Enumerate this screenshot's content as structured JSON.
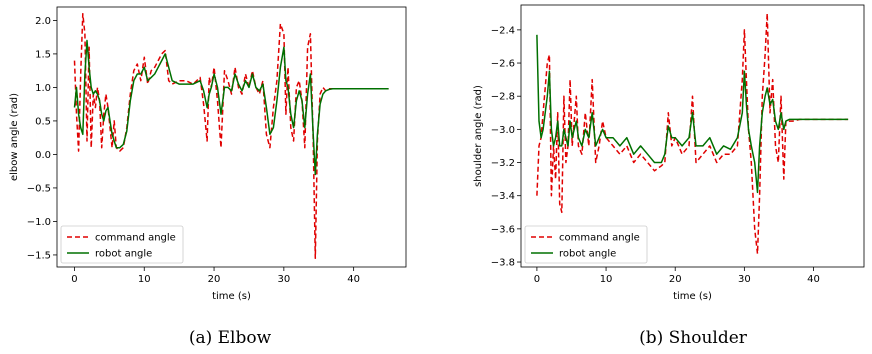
{
  "colors": {
    "command": "#e00000",
    "robot": "#007000"
  },
  "chart_data": [
    {
      "type": "line",
      "caption": "(a) Elbow",
      "xlabel": "time (s)",
      "ylabel": "elbow angle (rad)",
      "xlim": [
        -2.5,
        47.5
      ],
      "ylim": [
        -1.68,
        2.2
      ],
      "xticks": [
        0,
        10,
        20,
        30,
        40
      ],
      "yticks": [
        -1.5,
        -1.0,
        -0.5,
        0.0,
        0.5,
        1.0,
        1.5,
        2.0
      ],
      "ytick_labels": [
        "−1.5",
        "−1.0",
        "−0.5",
        "0.0",
        "0.5",
        "1.0",
        "1.5",
        "2.0"
      ],
      "legend_position": "lower-left",
      "grid": false,
      "series": [
        {
          "name": "command angle",
          "style": "dashed",
          "color": "#e00000",
          "x": [
            0,
            0.3,
            0.6,
            0.9,
            1.2,
            1.5,
            1.8,
            2.1,
            2.4,
            2.7,
            3.0,
            3.3,
            3.6,
            3.9,
            4.2,
            4.5,
            4.8,
            5.1,
            5.4,
            5.7,
            6.0,
            6.5,
            7.0,
            7.5,
            8.0,
            8.5,
            9.0,
            9.5,
            10.0,
            10.5,
            11.0,
            11.5,
            12.0,
            12.5,
            13.0,
            13.5,
            14.0,
            15.0,
            16.0,
            17.0,
            18.0,
            18.5,
            19.0,
            19.3,
            19.6,
            20.0,
            20.5,
            21.0,
            21.5,
            22.0,
            22.5,
            23.0,
            23.5,
            24.0,
            24.5,
            25.0,
            25.5,
            26.0,
            26.5,
            27.0,
            27.5,
            28.0,
            28.5,
            29.0,
            29.5,
            30.0,
            30.3,
            30.6,
            31.0,
            31.4,
            31.8,
            32.2,
            32.6,
            33.0,
            33.4,
            33.8,
            34.2,
            34.5,
            34.8,
            35.2,
            35.6,
            36.0,
            36.5,
            37.0,
            38.0,
            40.0,
            42.0,
            45.0
          ],
          "y": [
            1.4,
            0.6,
            0.05,
            1.2,
            2.1,
            1.8,
            0.2,
            1.6,
            0.1,
            0.9,
            0.7,
            1.0,
            0.8,
            0.1,
            0.6,
            0.9,
            0.7,
            0.4,
            0.1,
            0.5,
            0.1,
            0.05,
            0.1,
            0.4,
            0.9,
            1.25,
            1.35,
            1.1,
            1.45,
            1.05,
            1.25,
            1.3,
            1.4,
            1.5,
            1.55,
            1.1,
            1.05,
            1.1,
            1.1,
            1.05,
            1.15,
            0.75,
            0.2,
            1.15,
            1.0,
            1.3,
            0.8,
            0.1,
            1.25,
            1.1,
            0.9,
            1.3,
            1.0,
            0.9,
            1.2,
            1.0,
            1.25,
            1.0,
            0.9,
            1.1,
            0.3,
            0.1,
            0.7,
            1.1,
            1.95,
            1.8,
            0.6,
            1.3,
            0.4,
            0.2,
            1.0,
            1.1,
            0.8,
            0.1,
            1.6,
            1.8,
            0.2,
            -1.55,
            0.2,
            0.9,
            1.0,
            0.95,
            0.98,
            0.98,
            0.98,
            0.98,
            0.98,
            0.98
          ]
        },
        {
          "name": "robot angle",
          "style": "solid",
          "color": "#007000",
          "x": [
            0,
            0.3,
            0.6,
            0.9,
            1.2,
            1.5,
            1.8,
            2.1,
            2.4,
            2.7,
            3.0,
            3.3,
            3.6,
            3.9,
            4.2,
            4.5,
            4.8,
            5.1,
            5.4,
            5.7,
            6.0,
            6.5,
            7.0,
            7.5,
            8.0,
            8.5,
            9.0,
            9.5,
            10.0,
            10.5,
            11.0,
            11.5,
            12.0,
            12.5,
            13.0,
            13.5,
            14.0,
            15.0,
            16.0,
            17.0,
            18.0,
            18.5,
            19.0,
            19.3,
            19.6,
            20.0,
            20.5,
            21.0,
            21.5,
            22.0,
            22.5,
            23.0,
            23.5,
            24.0,
            24.5,
            25.0,
            25.5,
            26.0,
            26.5,
            27.0,
            27.5,
            28.0,
            28.5,
            29.0,
            29.5,
            30.0,
            30.3,
            30.6,
            31.0,
            31.4,
            31.8,
            32.2,
            32.6,
            33.0,
            33.4,
            33.8,
            34.2,
            34.5,
            34.8,
            35.2,
            35.6,
            36.0,
            36.5,
            37.0,
            38.0,
            40.0,
            42.0,
            45.0
          ],
          "y": [
            0.7,
            1.0,
            0.6,
            0.4,
            0.3,
            1.2,
            1.7,
            1.3,
            1.0,
            0.9,
            0.95,
            0.9,
            0.8,
            0.6,
            0.5,
            0.65,
            0.7,
            0.5,
            0.3,
            0.2,
            0.1,
            0.1,
            0.15,
            0.35,
            0.8,
            1.1,
            1.2,
            1.2,
            1.3,
            1.1,
            1.15,
            1.2,
            1.3,
            1.4,
            1.5,
            1.3,
            1.1,
            1.05,
            1.05,
            1.05,
            1.1,
            0.95,
            0.7,
            0.9,
            1.0,
            1.2,
            1.0,
            0.6,
            1.0,
            1.0,
            0.95,
            1.2,
            1.05,
            0.95,
            1.1,
            1.0,
            1.2,
            1.0,
            0.95,
            1.05,
            0.7,
            0.3,
            0.4,
            0.8,
            1.3,
            1.6,
            1.1,
            1.0,
            0.6,
            0.4,
            0.8,
            0.95,
            0.8,
            0.4,
            0.9,
            1.2,
            0.3,
            -0.3,
            0.3,
            0.75,
            0.9,
            0.95,
            0.97,
            0.98,
            0.98,
            0.98,
            0.98,
            0.98
          ]
        }
      ]
    },
    {
      "type": "line",
      "caption": "(b) Shoulder",
      "xlabel": "time (s)",
      "ylabel": "shoulder angle (rad)",
      "xlim": [
        -2.3,
        47.3
      ],
      "ylim": [
        -3.83,
        -2.25
      ],
      "xticks": [
        0,
        10,
        20,
        30,
        40
      ],
      "yticks": [
        -3.8,
        -3.6,
        -3.4,
        -3.2,
        -3.0,
        -2.8,
        -2.6,
        -2.4
      ],
      "ytick_labels": [
        "−3.8",
        "−3.6",
        "−3.4",
        "−3.2",
        "−3.0",
        "−2.8",
        "−2.6",
        "−2.4"
      ],
      "legend_position": "lower-left",
      "grid": false,
      "series": [
        {
          "name": "command angle",
          "style": "dashed",
          "color": "#e00000",
          "x": [
            0,
            0.3,
            0.6,
            0.9,
            1.2,
            1.5,
            1.8,
            2.1,
            2.4,
            2.7,
            3.0,
            3.3,
            3.6,
            3.9,
            4.2,
            4.5,
            4.8,
            5.1,
            5.4,
            5.7,
            6.0,
            6.5,
            7.0,
            7.5,
            8.0,
            8.5,
            9.0,
            9.5,
            10.0,
            11.0,
            12.0,
            13.0,
            14.0,
            15.0,
            16.0,
            17.0,
            18.0,
            18.5,
            19.0,
            19.5,
            20.0,
            21.0,
            22.0,
            22.5,
            23.0,
            24.0,
            25.0,
            26.0,
            27.0,
            28.0,
            29.0,
            29.7,
            30.0,
            30.3,
            30.6,
            31.0,
            31.5,
            31.9,
            32.2,
            32.6,
            33.0,
            33.3,
            33.7,
            34.1,
            34.5,
            34.9,
            35.3,
            35.7,
            36.0,
            36.5,
            37.0,
            38.0,
            40.0,
            42.0,
            45.0
          ],
          "y": [
            -3.4,
            -3.1,
            -3.05,
            -2.9,
            -2.75,
            -2.6,
            -2.55,
            -3.4,
            -3.1,
            -3.3,
            -2.9,
            -3.45,
            -3.5,
            -2.8,
            -3.2,
            -3.1,
            -2.7,
            -3.1,
            -2.95,
            -2.8,
            -3.1,
            -3.15,
            -2.9,
            -3.1,
            -2.7,
            -3.2,
            -3.1,
            -2.95,
            -3.05,
            -3.1,
            -3.15,
            -3.1,
            -3.2,
            -3.15,
            -3.2,
            -3.25,
            -3.22,
            -3.2,
            -2.9,
            -3.1,
            -3.05,
            -3.15,
            -3.1,
            -2.8,
            -3.2,
            -3.15,
            -3.1,
            -3.2,
            -3.15,
            -3.15,
            -3.1,
            -2.7,
            -2.4,
            -2.7,
            -3.0,
            -3.2,
            -3.6,
            -3.75,
            -3.4,
            -2.8,
            -2.55,
            -2.3,
            -2.9,
            -2.7,
            -3.1,
            -3.2,
            -2.8,
            -3.3,
            -2.95,
            -2.95,
            -2.95,
            -2.94,
            -2.94,
            -2.94,
            -2.94
          ]
        },
        {
          "name": "robot angle",
          "style": "solid",
          "color": "#007000",
          "x": [
            0,
            0.3,
            0.6,
            0.9,
            1.2,
            1.5,
            1.8,
            2.1,
            2.4,
            2.7,
            3.0,
            3.3,
            3.6,
            3.9,
            4.2,
            4.5,
            4.8,
            5.1,
            5.4,
            5.7,
            6.0,
            6.5,
            7.0,
            7.5,
            8.0,
            8.5,
            9.0,
            9.5,
            10.0,
            11.0,
            12.0,
            13.0,
            14.0,
            15.0,
            16.0,
            17.0,
            18.0,
            18.5,
            19.0,
            19.5,
            20.0,
            21.0,
            22.0,
            22.5,
            23.0,
            24.0,
            25.0,
            26.0,
            27.0,
            28.0,
            29.0,
            29.7,
            30.0,
            30.3,
            30.6,
            31.0,
            31.5,
            31.9,
            32.2,
            32.6,
            33.0,
            33.3,
            33.7,
            34.1,
            34.5,
            34.9,
            35.3,
            35.7,
            36.0,
            36.5,
            37.0,
            38.0,
            40.0,
            42.0,
            45.0
          ],
          "y": [
            -2.43,
            -2.95,
            -3.05,
            -3.0,
            -2.9,
            -2.8,
            -2.65,
            -3.0,
            -3.1,
            -3.05,
            -2.95,
            -3.1,
            -3.1,
            -3.0,
            -3.05,
            -3.1,
            -2.95,
            -3.05,
            -3.0,
            -2.95,
            -3.05,
            -3.1,
            -3.0,
            -3.05,
            -2.9,
            -3.1,
            -3.05,
            -3.0,
            -3.05,
            -3.05,
            -3.1,
            -3.05,
            -3.15,
            -3.1,
            -3.15,
            -3.2,
            -3.2,
            -3.15,
            -2.98,
            -3.05,
            -3.05,
            -3.1,
            -3.05,
            -2.9,
            -3.1,
            -3.1,
            -3.05,
            -3.15,
            -3.1,
            -3.12,
            -3.05,
            -2.9,
            -2.65,
            -2.85,
            -3.0,
            -3.1,
            -3.2,
            -3.38,
            -3.1,
            -2.9,
            -2.8,
            -2.75,
            -2.85,
            -2.82,
            -2.95,
            -3.0,
            -2.9,
            -3.0,
            -2.95,
            -2.94,
            -2.94,
            -2.94,
            -2.94,
            -2.94,
            -2.94
          ]
        }
      ]
    }
  ]
}
